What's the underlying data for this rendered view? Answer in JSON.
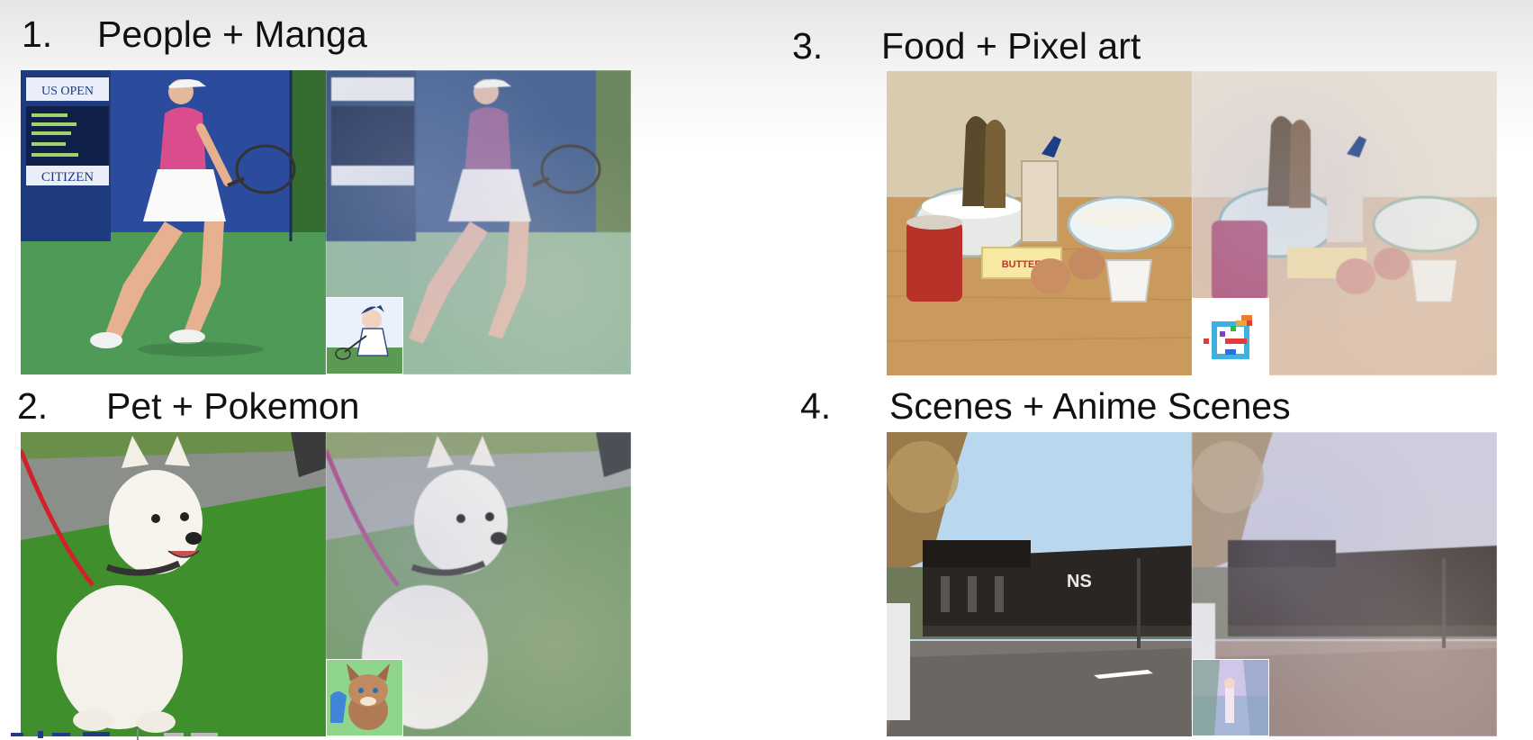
{
  "panels": [
    {
      "number": "1.",
      "title": "People + Manga",
      "photo_left": "tennis-player-photo",
      "photo_right": "tennis-player-stylized",
      "style_ref": "manga-style-reference"
    },
    {
      "number": "2.",
      "title": "Pet + Pokemon",
      "photo_left": "dog-photo",
      "photo_right": "dog-stylized",
      "style_ref": "pokemon-style-reference"
    },
    {
      "number": "3.",
      "title": "Food + Pixel art",
      "photo_left": "baking-ingredients-photo",
      "photo_right": "baking-ingredients-stylized",
      "style_ref": "pixel-art-style-reference"
    },
    {
      "number": "4.",
      "title": "Scenes + Anime Scenes",
      "photo_left": "train-photo",
      "photo_right": "train-stylized",
      "style_ref": "anime-scene-style-reference"
    }
  ],
  "photo_text": {
    "banner_us_open": "US OPEN",
    "banner_citizen": "CITIZEN",
    "butter_label": "BUTTER",
    "train_logo": "NS"
  },
  "colors": {
    "court_green": "#4f9a57",
    "wall_blue": "#2b4c9c",
    "grass_green": "#3f8f2c",
    "wood_tan": "#c99a5c",
    "sky_blue": "#b9d8f0"
  }
}
